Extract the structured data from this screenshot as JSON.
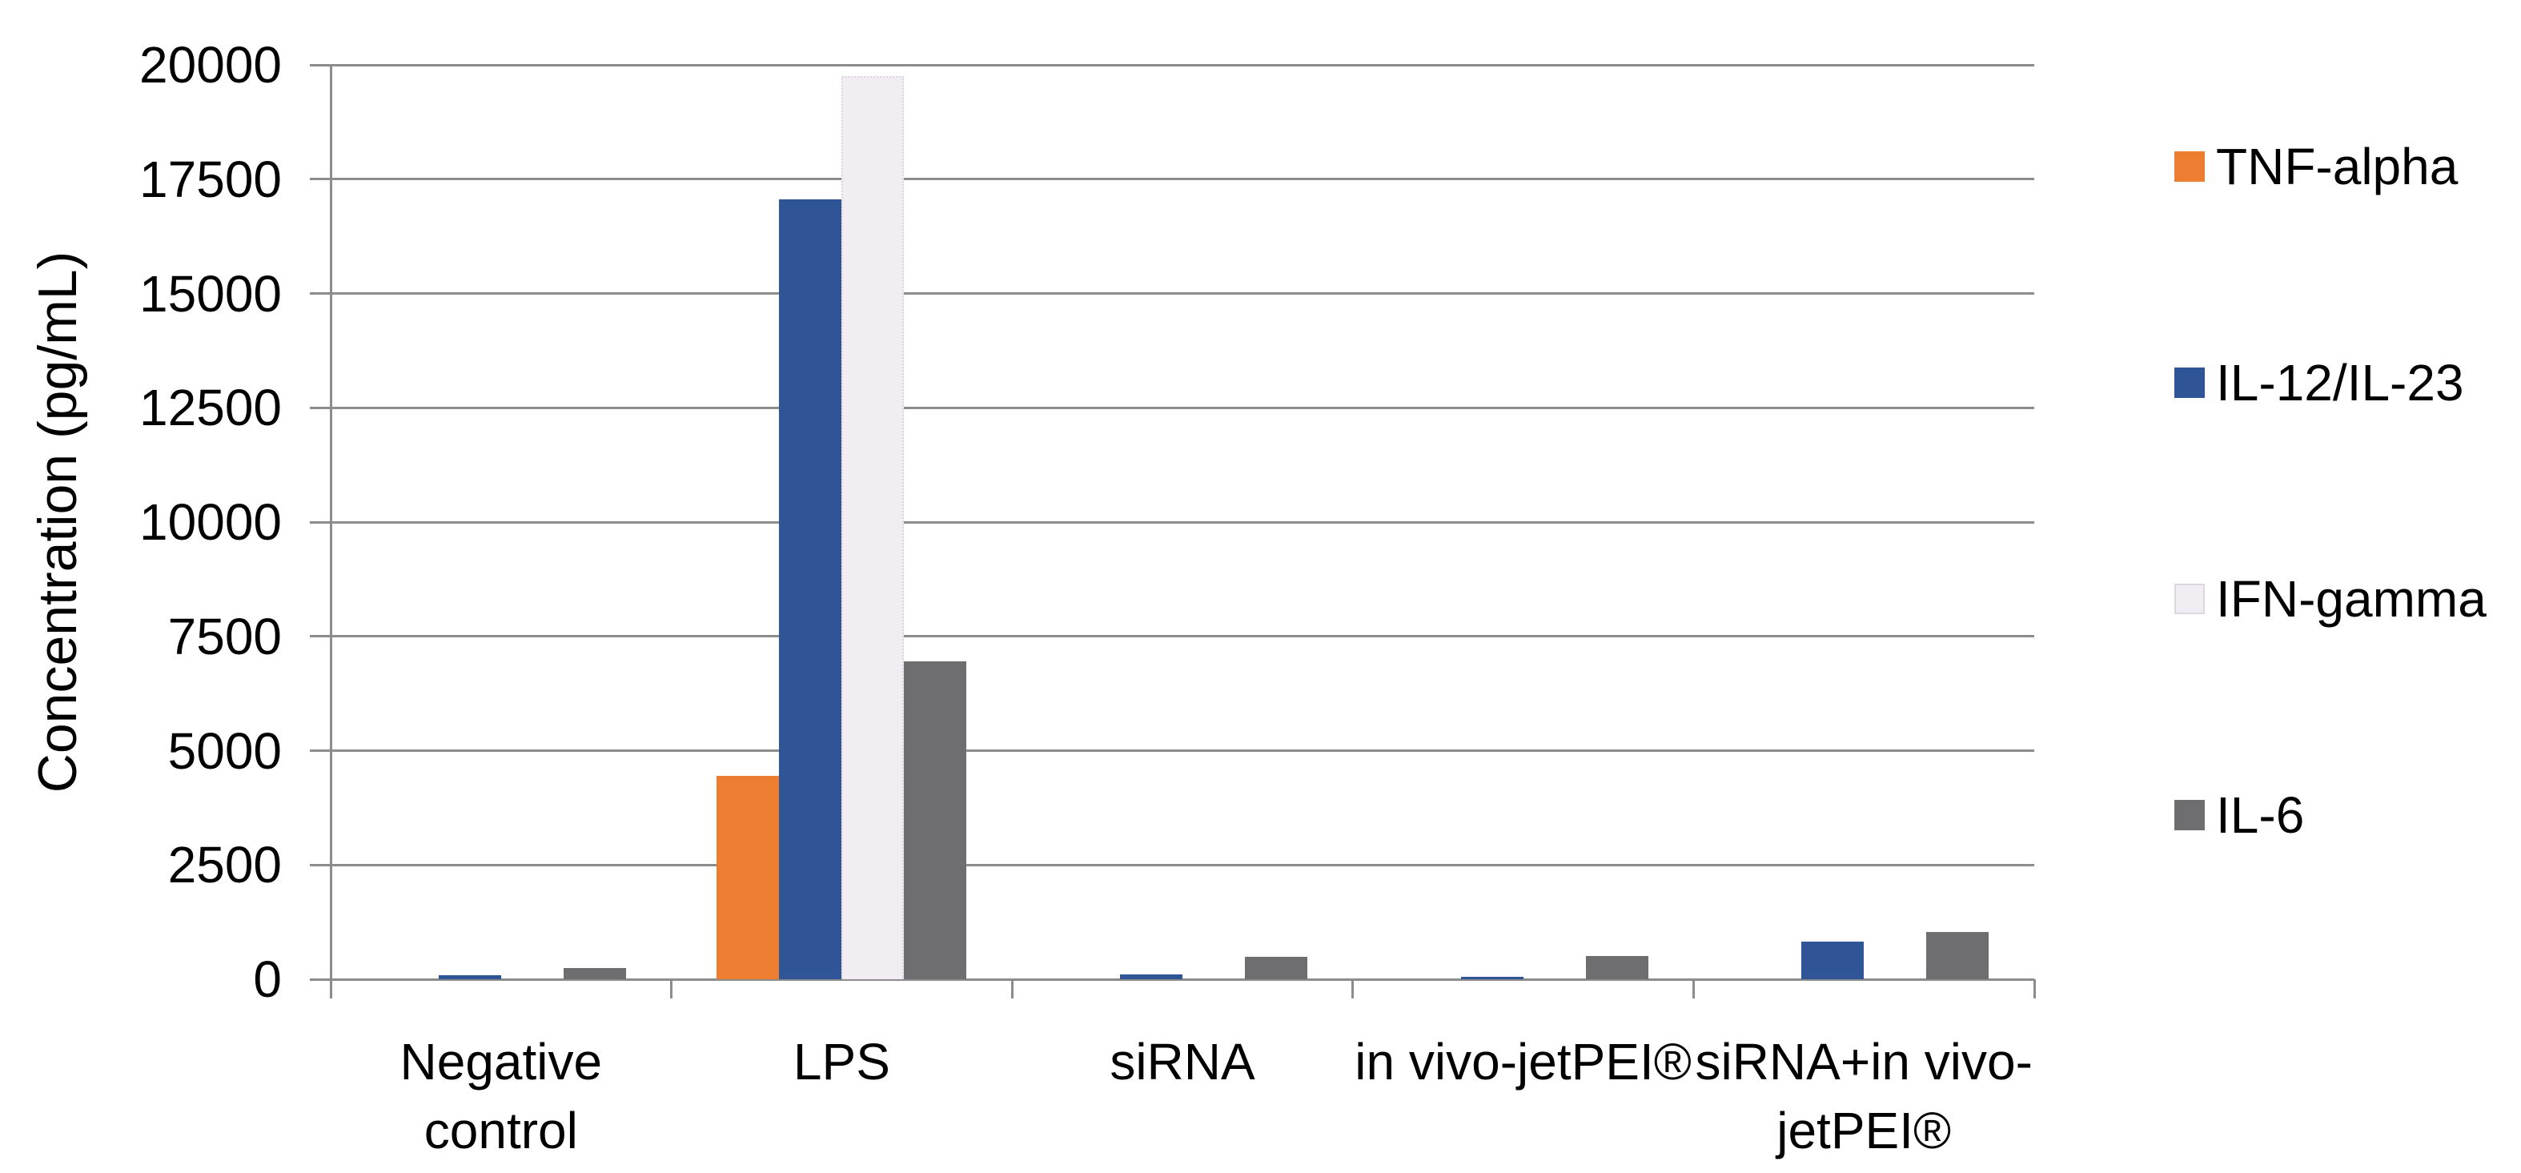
{
  "chart_data": {
    "type": "bar",
    "title": "",
    "xlabel": "",
    "ylabel": "Concentration (pg/mL)",
    "ylim": [
      0,
      20000
    ],
    "ytick_step": 2500,
    "yticks": [
      0,
      2500,
      5000,
      7500,
      10000,
      12500,
      15000,
      17500,
      20000
    ],
    "grid": true,
    "legend_position": "right",
    "categories": [
      "Negative control",
      "LPS",
      "siRNA",
      "in vivo-jetPEI®",
      "siRNA+in vivo-jetPEI®"
    ],
    "category_label_lines": [
      [
        "Negative",
        "control"
      ],
      [
        "LPS"
      ],
      [
        "siRNA"
      ],
      [
        "in vivo-jetPEI®"
      ],
      [
        "siRNA+in vivo-",
        "jetPEI®"
      ]
    ],
    "series": [
      {
        "name": "TNF-alpha",
        "color": "#ED7D31",
        "values": [
          0,
          4450,
          0,
          0,
          0
        ]
      },
      {
        "name": "IL-12/IL-23",
        "color": "#2F5597",
        "values": [
          80,
          17050,
          100,
          60,
          820
        ]
      },
      {
        "name": "IFN-gamma",
        "color": "#F2EDF3",
        "values": [
          0,
          19750,
          0,
          0,
          0
        ]
      },
      {
        "name": "IL-6",
        "color": "#6E6E70",
        "values": [
          240,
          6950,
          490,
          510,
          1030
        ]
      }
    ]
  },
  "colors": {
    "background": "#FFFFFF",
    "axis": "#8C8C8C",
    "text": "#000000",
    "ifn_bar_border": "#DDD5E0"
  }
}
